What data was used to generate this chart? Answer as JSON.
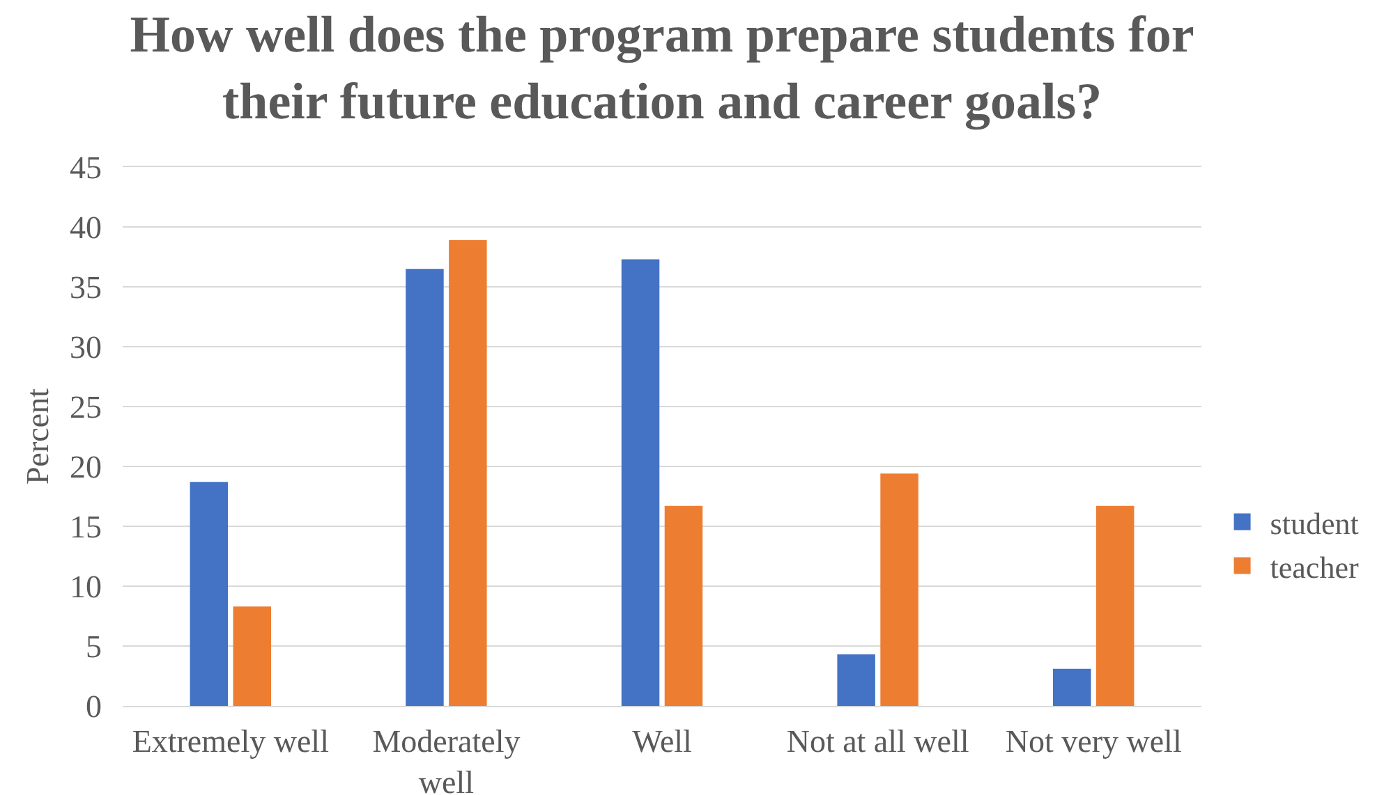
{
  "chart_data": {
    "type": "bar",
    "title": "How well does the program prepare students for their future education and career goals?",
    "ylabel": "Percent",
    "categories": [
      "Extremely well",
      "Moderately well",
      "Well",
      "Not at all well",
      "Not very well"
    ],
    "series": [
      {
        "name": "student",
        "color": "#4472c4",
        "values": [
          18.7,
          36.5,
          37.3,
          4.3,
          3.1
        ]
      },
      {
        "name": "teacher",
        "color": "#ed7d31",
        "values": [
          8.3,
          38.9,
          16.7,
          19.4,
          16.7
        ]
      }
    ],
    "ylim": [
      0,
      45
    ],
    "yticks": [
      0,
      5,
      10,
      15,
      20,
      25,
      30,
      35,
      40,
      45
    ],
    "grid": "y",
    "legend": "right"
  }
}
